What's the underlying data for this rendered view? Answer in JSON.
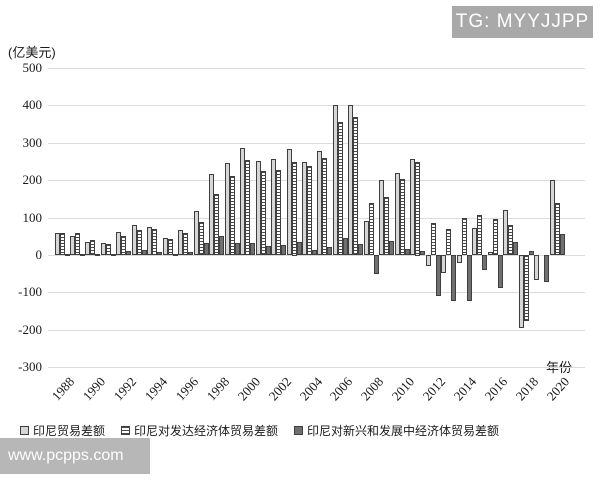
{
  "watermark_tg": "TG: MYYJJPP",
  "watermark_site": "www.pcpps.com",
  "unit_label": "(亿美元)",
  "xaxis_label": "年份",
  "legend": [
    {
      "label": "印尼贸易差额"
    },
    {
      "label": "印尼对发达经济体贸易差额"
    },
    {
      "label": "印尼对新兴和发展中经济体贸易差额"
    }
  ],
  "colors": {
    "light_fill": "#d6d6d6",
    "dotted_fill": "#ffffff",
    "dark_fill": "#707070",
    "outline": "#3f3f3f",
    "grid": "#dcdcdc",
    "watermark_bg": "#a9a9a9"
  },
  "chart_data": {
    "type": "bar",
    "title": "",
    "ylabel": "(亿美元)",
    "xlabel": "年份",
    "ylim": [
      -300,
      500
    ],
    "ytick_step": 100,
    "grid": true,
    "legend_position": "bottom",
    "x": [
      1988,
      1989,
      1990,
      1991,
      1992,
      1993,
      1994,
      1995,
      1996,
      1997,
      1998,
      1999,
      2000,
      2001,
      2002,
      2003,
      2004,
      2005,
      2006,
      2007,
      2008,
      2009,
      2010,
      2011,
      2012,
      2013,
      2014,
      2015,
      2016,
      2017,
      2018,
      2019,
      2020
    ],
    "xtick_labels": [
      "1988",
      "1990",
      "1992",
      "1994",
      "1996",
      "1998",
      "2000",
      "2002",
      "2004",
      "2006",
      "2008",
      "2010",
      "2012",
      "2014",
      "2016",
      "2018",
      "2020"
    ],
    "series": [
      {
        "name": "印尼贸易差额",
        "style": "light",
        "values": [
          59,
          52,
          36,
          32,
          62,
          81,
          74,
          45,
          68,
          117,
          216,
          246,
          286,
          252,
          257,
          284,
          248,
          278,
          400,
          400,
          90,
          200,
          219,
          257,
          -30,
          -49,
          -22,
          72,
          9,
          120,
          -194,
          -66,
          200
        ]
      },
      {
        "name": "印尼对发达经济体贸易差额",
        "style": "dotted",
        "values": [
          59,
          59,
          40,
          30,
          52,
          68,
          69,
          43,
          59,
          87,
          162,
          212,
          255,
          225,
          227,
          250,
          239,
          260,
          355,
          368,
          140,
          156,
          203,
          250,
          85,
          70,
          100,
          108,
          95,
          81,
          -176,
          0,
          140
        ]
      },
      {
        "name": "印尼对新兴和发展中经济体贸易差额",
        "style": "dark",
        "values": [
          3,
          3,
          2,
          2,
          11,
          13,
          8,
          3,
          7,
          32,
          50,
          33,
          33,
          24,
          28,
          36,
          14,
          22,
          45,
          29,
          -50,
          38,
          15,
          10,
          -110,
          -122,
          -124,
          -40,
          -89,
          35,
          12,
          -73,
          56
        ]
      }
    ]
  }
}
